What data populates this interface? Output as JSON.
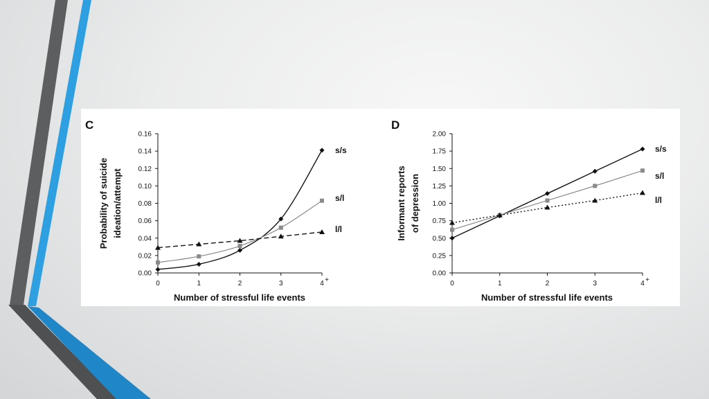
{
  "slide": {
    "accent_colors": {
      "dark_stripe": "#5d5e60",
      "blue_stripe": "#2e9fe0",
      "deep_blue": "#1f86c7"
    }
  },
  "chart_data": [
    {
      "panel": "C",
      "type": "line",
      "ylabel_line1": "Probability of suicide",
      "ylabel_line2": "ideation/attempt",
      "xlabel": "Number of stressful life events",
      "x": [
        0,
        1,
        2,
        3,
        4
      ],
      "x_tick_labels": [
        "0",
        "1",
        "2",
        "3",
        "4"
      ],
      "x_last_superscript": "+",
      "ylim": [
        0,
        0.16
      ],
      "y_ticks": [
        0,
        0.02,
        0.04,
        0.06,
        0.08,
        0.1,
        0.12,
        0.14,
        0.16
      ],
      "y_tick_labels": [
        "0.00",
        "0.02",
        "0.04",
        "0.06",
        "0.08",
        "0.10",
        "0.12",
        "0.14",
        "0.16"
      ],
      "grid": false,
      "series": [
        {
          "name": "s/s",
          "values": [
            0.004,
            0.01,
            0.026,
            0.062,
            0.141
          ],
          "color": "#111111",
          "dash": "solid",
          "marker": "diamond",
          "curved": true
        },
        {
          "name": "s/l",
          "values": [
            0.012,
            0.019,
            0.031,
            0.052,
            0.083
          ],
          "color": "#8a8a8a",
          "dash": "solid",
          "marker": "square",
          "curved": true
        },
        {
          "name": "l/l",
          "values": [
            0.029,
            0.033,
            0.037,
            0.042,
            0.047
          ],
          "color": "#111111",
          "dash": "dashed",
          "marker": "triangle",
          "curved": false
        }
      ]
    },
    {
      "panel": "D",
      "type": "line",
      "ylabel_line1": "Informant reports",
      "ylabel_line2": "of depression",
      "xlabel": "Number of stressful life events",
      "x": [
        0,
        1,
        2,
        3,
        4
      ],
      "x_tick_labels": [
        "0",
        "1",
        "2",
        "3",
        "4"
      ],
      "x_last_superscript": "+",
      "ylim": [
        0,
        2
      ],
      "y_ticks": [
        0,
        0.25,
        0.5,
        0.75,
        1.0,
        1.25,
        1.5,
        1.75,
        2.0
      ],
      "y_tick_labels": [
        "0.00",
        "0.25",
        "0.50",
        "0.75",
        "1.00",
        "1.25",
        "1.50",
        "1.75",
        "2.00"
      ],
      "grid": false,
      "series": [
        {
          "name": "s/s",
          "values": [
            0.5,
            0.82,
            1.14,
            1.46,
            1.78
          ],
          "color": "#111111",
          "dash": "solid",
          "marker": "diamond",
          "curved": false
        },
        {
          "name": "s/l",
          "values": [
            0.62,
            0.83,
            1.04,
            1.25,
            1.47
          ],
          "color": "#8a8a8a",
          "dash": "solid",
          "marker": "square",
          "curved": false
        },
        {
          "name": "l/l",
          "values": [
            0.72,
            0.83,
            0.94,
            1.04,
            1.15
          ],
          "color": "#111111",
          "dash": "dotted",
          "marker": "triangle",
          "curved": false
        }
      ]
    }
  ]
}
